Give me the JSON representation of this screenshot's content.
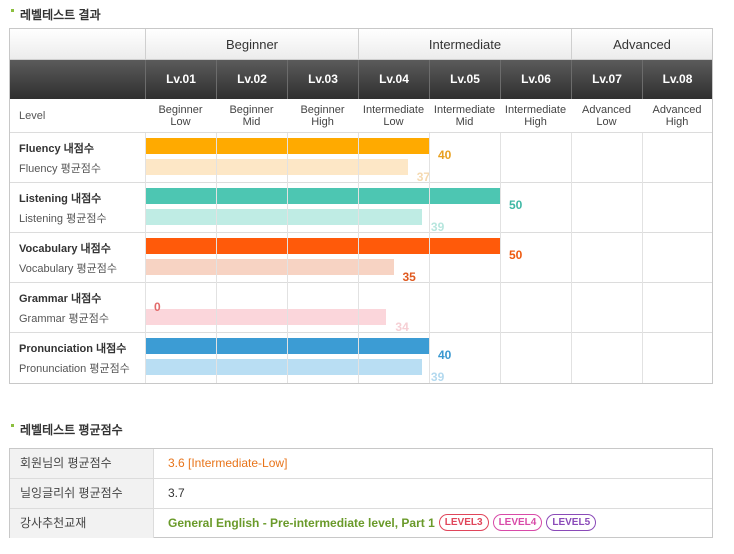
{
  "section1_title": "레벨테스트 결과",
  "section2_title": "레벨테스트 평균점수",
  "level_groups": [
    "Beginner",
    "Intermediate",
    "Advanced"
  ],
  "levels": [
    "Lv.01",
    "Lv.02",
    "Lv.03",
    "Lv.04",
    "Lv.05",
    "Lv.06",
    "Lv.07",
    "Lv.08"
  ],
  "level_row_label": "Level",
  "level_names": [
    [
      "Beginner",
      "Low"
    ],
    [
      "Beginner",
      "Mid"
    ],
    [
      "Beginner",
      "High"
    ],
    [
      "Intermediate",
      "Low"
    ],
    [
      "Intermediate",
      "Mid"
    ],
    [
      "Intermediate",
      "High"
    ],
    [
      "Advanced",
      "Low"
    ],
    [
      "Advanced",
      "High"
    ]
  ],
  "skills": [
    {
      "label": "Fluency 내점수",
      "avg_label": "Fluency 평균점수",
      "score": 40,
      "avg": 37,
      "color": "#ffaa00",
      "avg_color": "#fde7c6",
      "value_color": "#e8a020",
      "avg_value_color": "#f5d9b0"
    },
    {
      "label": "Listening 내점수",
      "avg_label": "Listening 평균점수",
      "score": 50,
      "avg": 39,
      "color": "#4dc6b2",
      "avg_color": "#bfece4",
      "value_color": "#3fb8a5",
      "avg_value_color": "#b7e6de"
    },
    {
      "label": "Vocabulary 내점수",
      "avg_label": "Vocabulary 평균점수",
      "score": 50,
      "avg": 35,
      "color": "#ff5a0a",
      "avg_color": "#f7d3c3",
      "value_color": "#ee5a10",
      "avg_value_color": "#e05a20"
    },
    {
      "label": "Grammar 내점수",
      "avg_label": "Grammar 평균점수",
      "score": 0,
      "avg": 34,
      "color": "#e8a6ad",
      "avg_color": "#fbd6db",
      "value_color": "#e26a6a",
      "avg_value_color": "#f6cfd4"
    },
    {
      "label": "Pronunciation 내점수",
      "avg_label": "Pronunciation 평균점수",
      "score": 40,
      "avg": 39,
      "color": "#3c9cd4",
      "avg_color": "#b9def3",
      "value_color": "#3a98d0",
      "avg_value_color": "#b3d9ef"
    }
  ],
  "avg_table": [
    {
      "label": "회원님의 평균점수",
      "value": "3.6 [Intermediate-Low]",
      "color": "#e8741a"
    },
    {
      "label": "닐잉글리쉬 평균점수",
      "value": "3.7",
      "color": "#333333"
    },
    {
      "label": "강사추천교재",
      "value": "General English - Pre-intermediate level, Part 1",
      "color": "#6a9a2a",
      "badges": [
        {
          "text": "LEVEL3",
          "color": "#e0455a"
        },
        {
          "text": "LEVEL4",
          "color": "#d84aa8"
        },
        {
          "text": "LEVEL5",
          "color": "#8a4ab8"
        }
      ]
    }
  ]
}
